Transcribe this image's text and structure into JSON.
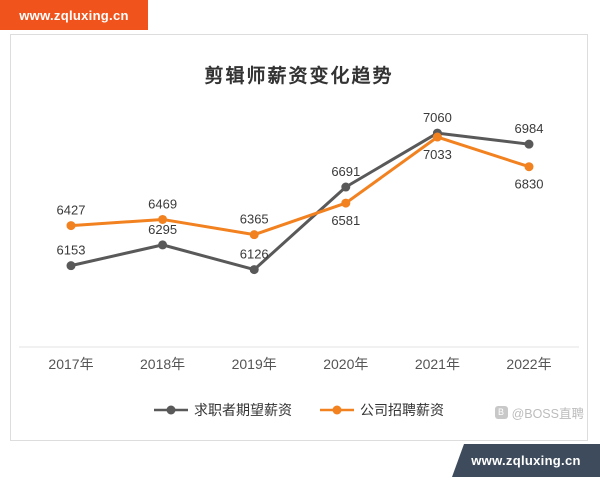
{
  "banners": {
    "top_left": {
      "text": "www.zqluxing.cn",
      "bg": "#F0541C"
    },
    "bottom_right": {
      "text": "www.zqluxing.cn",
      "bg": "#3D4B5C"
    }
  },
  "watermark": {
    "text": "@BOSS直聘"
  },
  "chart_data": {
    "type": "line",
    "title": "剪辑师薪资变化趋势",
    "categories": [
      "2017年",
      "2018年",
      "2019年",
      "2020年",
      "2021年",
      "2022年"
    ],
    "series": [
      {
        "name": "求职者期望薪资",
        "color": "#595959",
        "values": [
          6153,
          6295,
          6126,
          6691,
          7060,
          6984
        ],
        "label_side": [
          "above",
          "above",
          "above",
          "above",
          "above",
          "above"
        ]
      },
      {
        "name": "公司招聘薪资",
        "color": "#F28120",
        "values": [
          6427,
          6469,
          6365,
          6581,
          7033,
          6830
        ],
        "label_side": [
          "above",
          "above",
          "above",
          "below",
          "below",
          "below"
        ]
      }
    ],
    "ylim": [
      6000,
      7300
    ],
    "xlabel": "",
    "ylabel": "",
    "grid": false,
    "legend_position": "bottom"
  }
}
